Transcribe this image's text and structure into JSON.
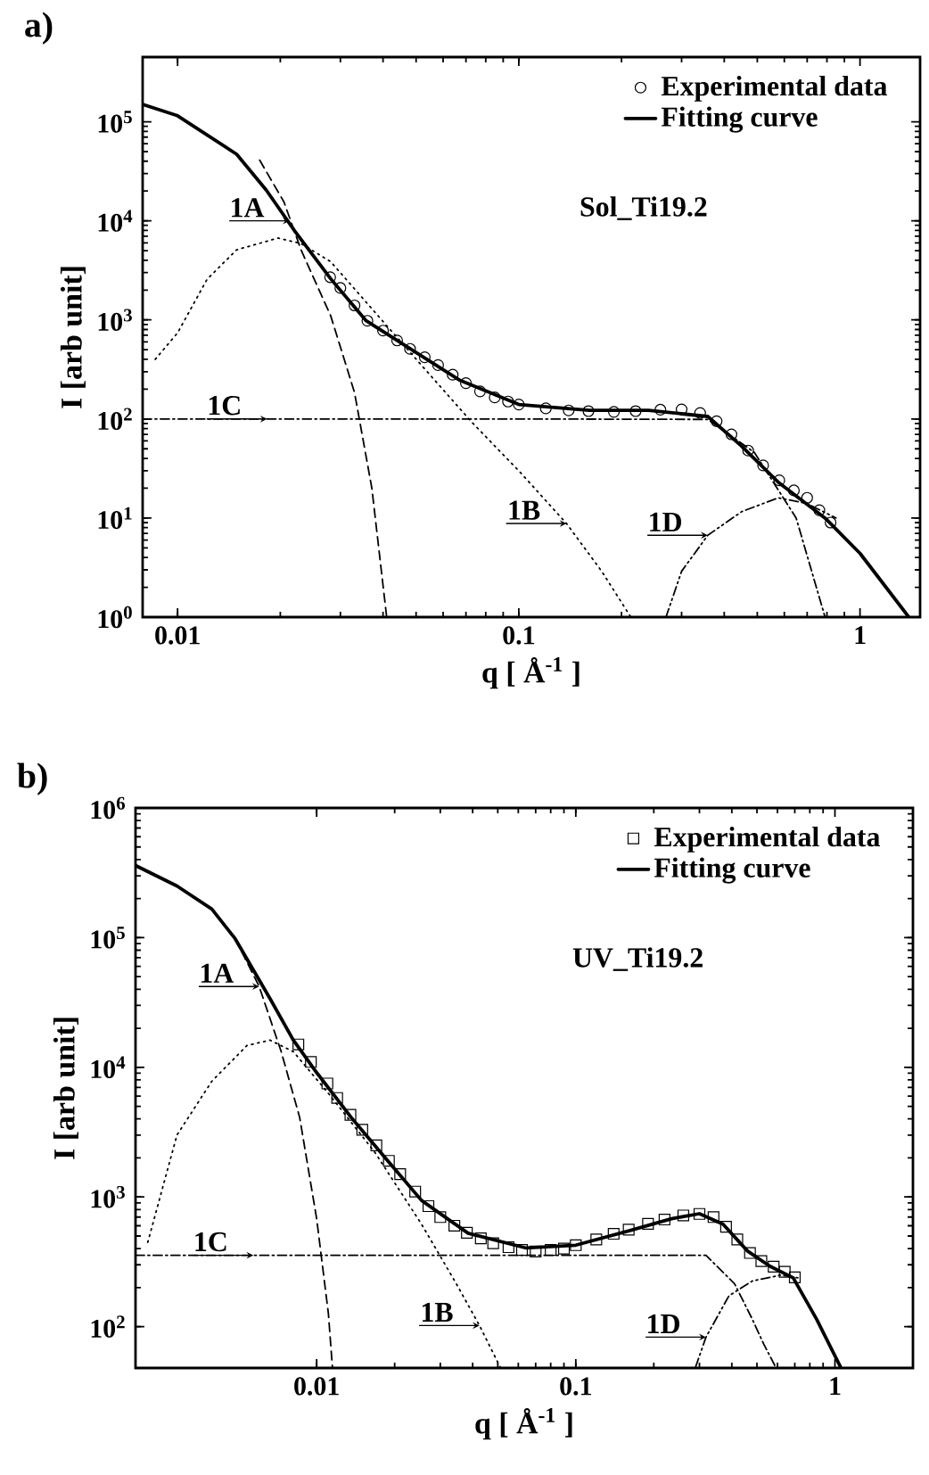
{
  "chart_data": [
    {
      "type": "line",
      "title": "a)",
      "xlabel": "q [ Å$^{-1}$ ]",
      "ylabel": "I [arb unit]",
      "log": "xy",
      "legend": "top right",
      "xlim": [
        0.0079,
        1.5
      ],
      "ylim": [
        1,
        450000
      ],
      "xticks": [
        0.01,
        0.1,
        1
      ],
      "yticks": [
        {
          "value": 1,
          "label": "10$^{0}$"
        },
        {
          "value": 10,
          "label": "10$^{1}$"
        },
        {
          "value": 100,
          "label": "10$^{2}$"
        },
        {
          "value": 1000,
          "label": "10$^{3}$"
        },
        {
          "value": 10000,
          "label": "10$^{4}$"
        },
        {
          "value": 100000,
          "label": "10$^{5}$"
        }
      ],
      "series": [
        {
          "name": "Experimental data",
          "type": "scatter",
          "marker": "circle",
          "color": "#000000",
          "x": [
            0.028,
            0.03,
            0.033,
            0.036,
            0.04,
            0.044,
            0.048,
            0.053,
            0.058,
            0.064,
            0.07,
            0.077,
            0.085,
            0.093,
            0.1,
            0.12,
            0.14,
            0.16,
            0.19,
            0.22,
            0.26,
            0.3,
            0.34,
            0.38,
            0.42,
            0.47,
            0.52,
            0.58,
            0.64,
            0.7,
            0.76,
            0.82
          ],
          "values": [
            2700,
            2100,
            1400,
            980,
            780,
            620,
            510,
            420,
            350,
            280,
            230,
            190,
            165,
            150,
            140,
            128,
            122,
            120,
            118,
            120,
            124,
            125,
            115,
            95,
            70,
            48,
            34,
            24,
            19,
            16,
            12,
            9
          ]
        },
        {
          "name": "Fitting curve",
          "line_style": "solid",
          "color": "#000000",
          "x": [
            0.0079,
            0.01,
            0.0149,
            0.0182,
            0.0221,
            0.0281,
            0.0357,
            0.049,
            0.0673,
            0.1,
            0.161,
            0.24,
            0.358,
            0.45,
            0.576,
            0.79,
            1,
            1.39
          ],
          "values": [
            150000,
            115000,
            47000,
            20400,
            7800,
            2600,
            980,
            490,
            245,
            140,
            122,
            122,
            106,
            53,
            23,
            10,
            4.4,
            1
          ]
        },
        {
          "line_style": "dashed",
          "color": "#000000",
          "x": [
            0.0174,
            0.0205,
            0.023,
            0.0281,
            0.033,
            0.0371,
            0.041
          ],
          "values": [
            41000,
            15500,
            5100,
            1100,
            185,
            20,
            1
          ]
        },
        {
          "line_style": "dotted",
          "color": "#000000",
          "x": [
            0.0086,
            0.01,
            0.0122,
            0.0149,
            0.0197,
            0.023,
            0.0281,
            0.0386,
            0.053,
            0.073,
            0.1,
            0.138,
            0.175,
            0.213
          ],
          "values": [
            400,
            740,
            2570,
            5100,
            6700,
            5900,
            3870,
            1110,
            320,
            92,
            30,
            8.8,
            2.9,
            1
          ]
        },
        {
          "line_style": "dashdotted",
          "color": "#000000",
          "x": [
            0.0079,
            0.1,
            0.358,
            0.49,
            0.65,
            0.79
          ],
          "values": [
            100,
            100,
            99,
            46,
            10,
            1
          ]
        },
        {
          "line_style": "dashdotdotted",
          "color": "#000000",
          "x": [
            0.27,
            0.3,
            0.358,
            0.45,
            0.576,
            0.7,
            0.85
          ],
          "values": [
            1,
            2.9,
            6.7,
            11.6,
            16,
            14,
            10
          ]
        }
      ],
      "annotations": [
        "Sol_Ti19.2",
        {
          "text": "1A",
          "x": 0.0213,
          "y": 10000
        },
        {
          "text": "1B",
          "x": 0.138,
          "y": 8.8
        },
        {
          "text": "1C",
          "x": 0.0183,
          "y": 100
        },
        {
          "text": "1D",
          "x": 0.358,
          "y": 6.7
        }
      ]
    },
    {
      "type": "line",
      "title": "b)",
      "xlabel": "q [ Å$^{-1}$ ]",
      "ylabel": "I [arb unit]",
      "log": "xy",
      "legend": "top right",
      "xlim": [
        0.002,
        2
      ],
      "ylim": [
        48,
        1000000
      ],
      "xticks": [
        0.01,
        0.1,
        1
      ],
      "yticks": [
        {
          "value": 100,
          "label": "10$^{2}$"
        },
        {
          "value": 1000,
          "label": "10$^{3}$"
        },
        {
          "value": 10000,
          "label": "10$^{4}$"
        },
        {
          "value": 100000,
          "label": "10$^{5}$"
        },
        {
          "value": 1000000,
          "label": "10$^{6}$"
        }
      ],
      "series": [
        {
          "name": "Experimental data",
          "type": "scatter",
          "marker": "square",
          "color": "#000000",
          "x": [
            0.0085,
            0.0095,
            0.011,
            0.012,
            0.0135,
            0.015,
            0.017,
            0.019,
            0.021,
            0.024,
            0.027,
            0.03,
            0.034,
            0.038,
            0.043,
            0.048,
            0.055,
            0.062,
            0.07,
            0.08,
            0.09,
            0.1,
            0.12,
            0.14,
            0.16,
            0.19,
            0.22,
            0.26,
            0.3,
            0.34,
            0.38,
            0.42,
            0.47,
            0.52,
            0.58,
            0.64,
            0.7
          ],
          "values": [
            15000,
            11000,
            7500,
            5800,
            4300,
            3300,
            2500,
            1900,
            1500,
            1100,
            850,
            700,
            600,
            530,
            480,
            440,
            410,
            390,
            380,
            390,
            400,
            425,
            470,
            520,
            560,
            620,
            670,
            720,
            740,
            700,
            590,
            470,
            370,
            320,
            290,
            265,
            240
          ]
        },
        {
          "name": "Fitting curve",
          "line_style": "solid",
          "color": "#000000",
          "x": [
            0.002,
            0.00289,
            0.00394,
            0.00485,
            0.0066,
            0.00813,
            0.01,
            0.0136,
            0.0186,
            0.0254,
            0.0384,
            0.0644,
            0.1,
            0.163,
            0.234,
            0.3,
            0.37,
            0.46,
            0.56,
            0.69,
            0.85,
            1.05
          ],
          "values": [
            360000,
            250000,
            166000,
            98000,
            34000,
            16200,
            9100,
            4100,
            1950,
            940,
            525,
            404,
            425,
            553,
            680,
            743,
            616,
            383,
            293,
            238,
            114,
            49
          ]
        },
        {
          "line_style": "dashed",
          "color": "#000000",
          "x": [
            0.00485,
            0.006,
            0.0073,
            0.0086,
            0.01,
            0.0111,
            0.0115
          ],
          "values": [
            98000,
            42000,
            13200,
            4100,
            680,
            126,
            49
          ]
        },
        {
          "line_style": "dotted",
          "color": "#000000",
          "x": [
            0.00223,
            0.00289,
            0.00394,
            0.00538,
            0.0066,
            0.00813,
            0.0111,
            0.0168,
            0.0254,
            0.0346,
            0.0425,
            0.051
          ],
          "values": [
            447,
            3000,
            7800,
            14700,
            16200,
            13200,
            6300,
            2200,
            616,
            214,
            102,
            49
          ]
        },
        {
          "line_style": "dashdotted",
          "color": "#000000",
          "x": [
            0.002,
            0.1,
            0.318,
            0.41,
            0.48,
            0.53,
            0.59
          ],
          "values": [
            355,
            355,
            355,
            214,
            114,
            74,
            49
          ]
        },
        {
          "line_style": "dashdotdotted",
          "color": "#000000",
          "x": [
            0.29,
            0.318,
            0.39,
            0.48,
            0.62,
            0.72
          ],
          "values": [
            49,
            83,
            173,
            225,
            250,
            238
          ]
        }
      ],
      "annotations": [
        "UV_Ti19.2",
        {
          "text": "1A",
          "x": 0.006,
          "y": 42000
        },
        {
          "text": "1B",
          "x": 0.0425,
          "y": 102
        },
        {
          "text": "1C",
          "x": 0.0057,
          "y": 355
        },
        {
          "text": "1D",
          "x": 0.318,
          "y": 83
        }
      ]
    }
  ]
}
